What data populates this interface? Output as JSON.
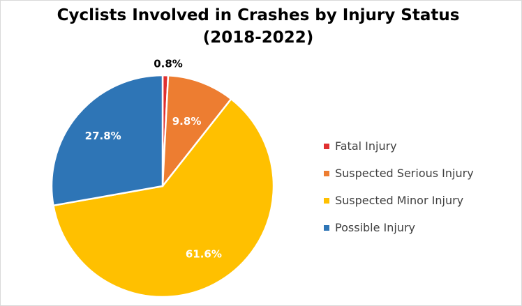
{
  "chart_data": {
    "type": "pie",
    "title_line1": "Cyclists Involved in Crashes by Injury Status",
    "title_line2": "(2018-2022)",
    "slices": [
      {
        "name": "Fatal Injury",
        "value": 0.8,
        "label": "0.8%",
        "color": "#e03030"
      },
      {
        "name": "Suspected Serious Injury",
        "value": 9.8,
        "label": "9.8%",
        "color": "#ed7d31"
      },
      {
        "name": "Suspected Minor Injury",
        "value": 61.6,
        "label": "61.6%",
        "color": "#ffc000"
      },
      {
        "name": "Possible Injury",
        "value": 27.8,
        "label": "27.8%",
        "color": "#2e75b6"
      }
    ],
    "legend_position": "right",
    "start_angle": "12 o'clock, clockwise"
  }
}
